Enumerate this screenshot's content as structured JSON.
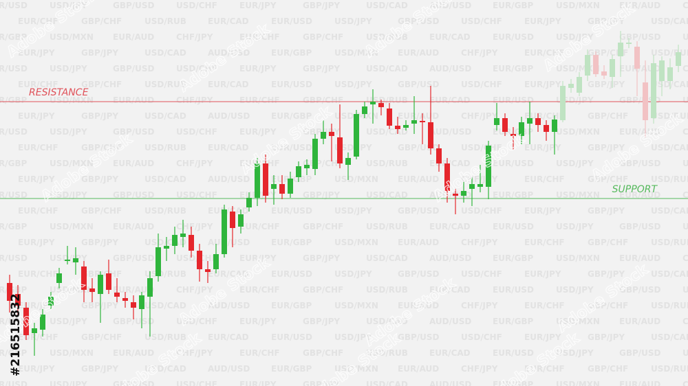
{
  "chart_data": {
    "type": "candlestick",
    "ylim": [
      0,
      562
    ],
    "series": [
      {
        "up_color": "#2fb53c",
        "down_color": "#e5262c",
        "open": [
          150,
          134,
          114,
          77,
          82,
          117,
          150,
          182,
          180,
          174,
          142,
          134,
          164,
          136,
          128,
          122,
          112,
          130,
          160,
          200,
          204,
          217,
          220,
          197,
          170,
          170,
          192,
          254,
          232,
          260,
          274,
          324,
          287,
          294,
          280,
          304,
          317,
          316,
          360,
          370,
          362,
          322,
          334,
          396,
          410,
          412,
          404,
          379,
          376,
          382,
          386,
          384,
          346,
          324,
          280,
          277,
          287,
          290,
          290,
          380,
          390,
          367,
          364,
          382,
          390,
          380,
          370
        ],
        "high": [
          162,
          147,
          122,
          92,
          112,
          137,
          172,
          204,
          202,
          182,
          157,
          167,
          184,
          157,
          137,
          132,
          137,
          167,
          222,
          217,
          232,
          242,
          232,
          207,
          182,
          207,
          264,
          262,
          257,
          282,
          332,
          337,
          307,
          307,
          312,
          327,
          330,
          367,
          387,
          382,
          410,
          340,
          402,
          414,
          432,
          417,
          412,
          392,
          387,
          422,
          397,
          437,
          352,
          332,
          287,
          297,
          304,
          322,
          357,
          412,
          397,
          377,
          392,
          414,
          397,
          387,
          394
        ],
        "low": [
          107,
          102,
          67,
          44,
          72,
          112,
          142,
          177,
          162,
          122,
          122,
          92,
          134,
          122,
          114,
          97,
          84,
          72,
          152,
          182,
          192,
          202,
          187,
          152,
          150,
          164,
          187,
          202,
          222,
          254,
          262,
          267,
          264,
          272,
          274,
          297,
          307,
          307,
          352,
          327,
          317,
          300,
          330,
          390,
          382,
          394,
          374,
          367,
          372,
          367,
          352,
          337,
          312,
          267,
          250,
          267,
          262,
          282,
          272,
          372,
          364,
          344,
          352,
          352,
          370,
          357,
          337
        ],
        "close": [
          124,
          117,
          74,
          84,
          104,
          130,
          164,
          184,
          186,
          140,
          137,
          162,
          140,
          130,
          124,
          114,
          132,
          157,
          202,
          204,
          220,
          222,
          197,
          170,
          166,
          192,
          257,
          230,
          250,
          274,
          324,
          277,
          294,
          280,
          302,
          320,
          322,
          360,
          370,
          364,
          324,
          332,
          396,
          407,
          414,
          406,
          379,
          374,
          380,
          387,
          384,
          346,
          324,
          284,
          277,
          284,
          294,
          294,
          350,
          390,
          370,
          364,
          384,
          390,
          380,
          370,
          388
        ]
      },
      {
        "up_color": "#bfe3c2",
        "down_color": "#f2c2c4",
        "open": [
          387,
          434,
          427,
          452,
          482,
          458,
          450,
          480,
          498,
          494,
          442,
          390,
          444,
          444,
          466
        ],
        "high": [
          444,
          447,
          457,
          490,
          487,
          467,
          482,
          517,
          507,
          502,
          474,
          482,
          480,
          477,
          497
        ],
        "low": [
          384,
          427,
          422,
          444,
          450,
          447,
          434,
          450,
          492,
          422,
          362,
          382,
          422,
          432,
          457
        ],
        "close": [
          437,
          440,
          450,
          482,
          454,
          452,
          476,
          500,
          500,
          462,
          387,
          470,
          474,
          464,
          486
        ]
      }
    ],
    "levels": [
      {
        "label": "RESISTANCE",
        "value": 414,
        "color": "#e0525a",
        "label_position": "left"
      },
      {
        "label": "SUPPORT",
        "value": 273,
        "color": "#55b95c",
        "label_position": "right"
      }
    ],
    "background_labels": [
      "EUR/USD",
      "USD/JPY",
      "GBP/USD",
      "USD/CHF",
      "EUR/JPY",
      "GBP/JPY",
      "USD/CAD",
      "AUD/USD",
      "EUR/GBP",
      "USD/MXN",
      "EUR/AUD",
      "CHF/JPY",
      "EUR/CHF",
      "GBP/CHF",
      "USD/RUB",
      "EUR/CAD"
    ],
    "watermark": "Adobe Stock",
    "image_id": "#216515832"
  }
}
